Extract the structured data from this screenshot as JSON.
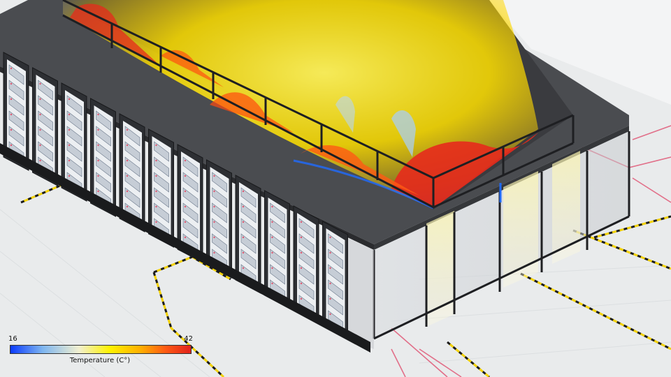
{
  "legend": {
    "min_label": "16",
    "max_label": "42",
    "title": "Temperature (C°)",
    "gradient_colors": [
      "#0b3bff",
      "#7fb6f0",
      "#f2f0d0",
      "#fff200",
      "#ffb000",
      "#ff5a14",
      "#e0221c"
    ]
  },
  "colors": {
    "floor": "#e9ebec",
    "roof": "#4a4c50",
    "rack": "#2d2f33",
    "frame": "#1e1f22",
    "hot_plume": "#ffe400",
    "hot_core": "#e72a1c",
    "floor_marking": "#1b1b1b",
    "floor_marking_alt": "#f2d100",
    "cable": "#e05a78"
  }
}
